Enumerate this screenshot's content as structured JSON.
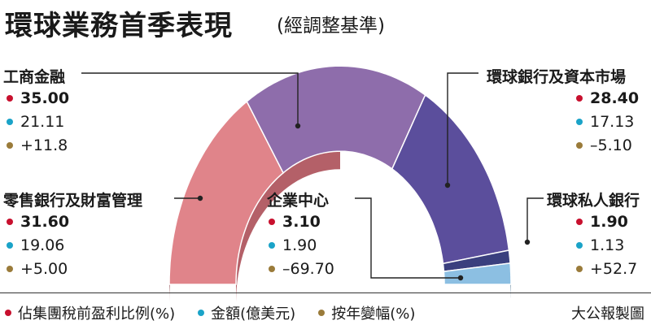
{
  "title": "環球業務首季表現",
  "subtitle": "(經調整基準)",
  "colors": {
    "share": "#c8102e",
    "amount": "#1aa3c8",
    "change": "#9a7b3a"
  },
  "legend": {
    "share": "佔集團稅前盈利比例(%)",
    "amount": "金額(億美元)",
    "change": "按年變幅(%)"
  },
  "source": "大公報製圖",
  "chart_data": {
    "type": "pie",
    "variant": "3d-half-donut",
    "series": [
      {
        "name": "零售銀行及財富管理",
        "share": "31.60",
        "amount": "19.06",
        "change": "+5.00",
        "color": "#e0848a"
      },
      {
        "name": "工商金融",
        "share": "35.00",
        "amount": "21.11",
        "change": "+11.8",
        "color": "#8e6dab"
      },
      {
        "name": "環球銀行及資本市場",
        "share": "28.40",
        "amount": "17.13",
        "change": "–5.10",
        "color": "#5b4e9c"
      },
      {
        "name": "環球私人銀行",
        "share": "1.90",
        "amount": "1.13",
        "change": "+52.7",
        "color": "#3a3f7e"
      },
      {
        "name": "企業中心",
        "share": "3.10",
        "amount": "1.90",
        "change": "–69.70",
        "color": "#8cbfe2"
      }
    ]
  }
}
